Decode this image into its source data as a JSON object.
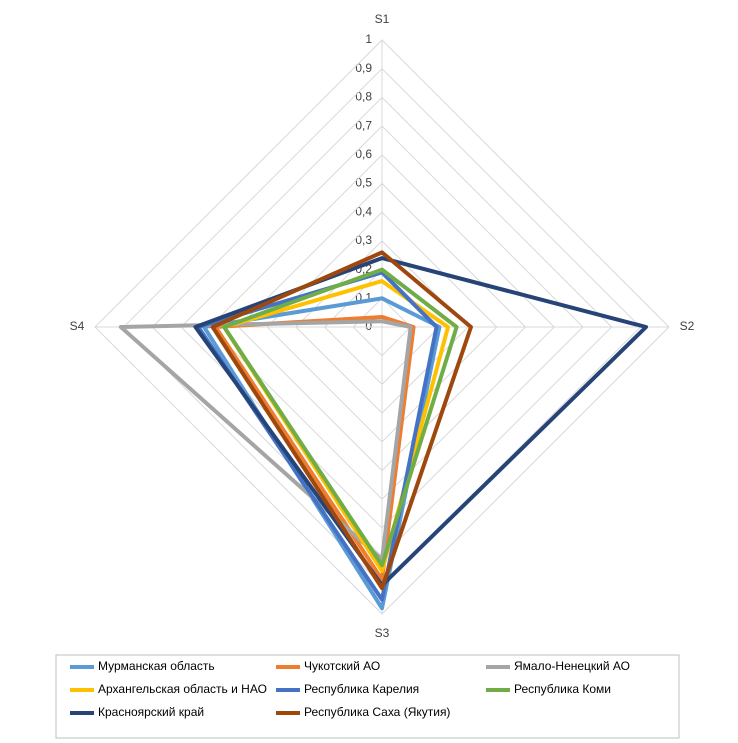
{
  "chart_data": {
    "type": "radar",
    "categories": [
      "S1",
      "S2",
      "S3",
      "S4"
    ],
    "ylim": [
      0,
      1
    ],
    "yticks": [
      0,
      {
        "value": 0.1,
        "label": "0,1"
      },
      {
        "value": 0.2,
        "label": "0,2"
      },
      {
        "value": 0.3,
        "label": "0,3"
      },
      {
        "value": 0.4,
        "label": "0,4"
      },
      {
        "value": 0.5,
        "label": "0,5"
      },
      {
        "value": 0.6,
        "label": "0,6"
      },
      {
        "value": 0.7,
        "label": "0,7"
      },
      {
        "value": 0.8,
        "label": "0,8"
      },
      {
        "value": 0.9,
        "label": "0,9"
      },
      1
    ],
    "grid": true,
    "legend": "bottom",
    "series": [
      {
        "name": "Мурманская область",
        "color": "#5b9bd5",
        "values": [
          0.1,
          0.2,
          0.98,
          0.62
        ]
      },
      {
        "name": "Чукотский АО",
        "color": "#ed7d31",
        "values": [
          0.035,
          0.11,
          0.88,
          0.58
        ]
      },
      {
        "name": "Ямало-Ненецкий АО",
        "color": "#a5a5a5",
        "values": [
          0.02,
          0.1,
          0.81,
          0.91
        ]
      },
      {
        "name": "Архангельская область и НАО",
        "color": "#ffc000",
        "values": [
          0.16,
          0.23,
          0.85,
          0.55
        ]
      },
      {
        "name": "Республика Карелия",
        "color": "#4472c4",
        "values": [
          0.19,
          0.19,
          0.95,
          0.64
        ]
      },
      {
        "name": "Республика Коми",
        "color": "#70ad47",
        "values": [
          0.2,
          0.26,
          0.83,
          0.55
        ]
      },
      {
        "name": "Красноярский край",
        "color": "#264478",
        "values": [
          0.24,
          0.92,
          0.9,
          0.65
        ]
      },
      {
        "name": "Республика Саха (Якутия)",
        "color": "#9e480e",
        "values": [
          0.26,
          0.31,
          0.91,
          0.59
        ]
      }
    ]
  }
}
